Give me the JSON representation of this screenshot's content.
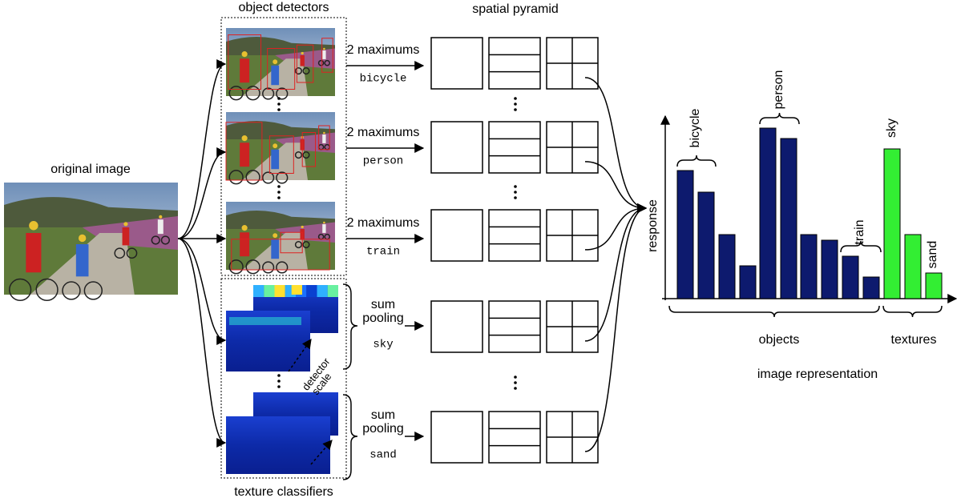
{
  "original_image": {
    "label": "original image"
  },
  "object_detectors": {
    "title": "object detectors",
    "rows": [
      {
        "pooling": "2 maximums",
        "class": "bicycle"
      },
      {
        "pooling": "2 maximums",
        "class": "person"
      },
      {
        "pooling": "2 maximums",
        "class": "train"
      }
    ]
  },
  "texture_classifiers": {
    "title": "texture classifiers",
    "detector_scale": [
      "detector",
      "scale"
    ],
    "rows": [
      {
        "pooling": [
          "sum",
          "pooling"
        ],
        "class": "sky"
      },
      {
        "pooling": [
          "sum",
          "pooling"
        ],
        "class": "sand"
      }
    ]
  },
  "spatial_pyramid": {
    "title": "spatial pyramid"
  },
  "representation": {
    "title": "image representation",
    "axis_label": "response",
    "object_labels": [
      "bicycle",
      "person",
      "train"
    ],
    "texture_labels": [
      "sky",
      "sand"
    ],
    "groups": [
      "objects",
      "textures"
    ]
  }
}
